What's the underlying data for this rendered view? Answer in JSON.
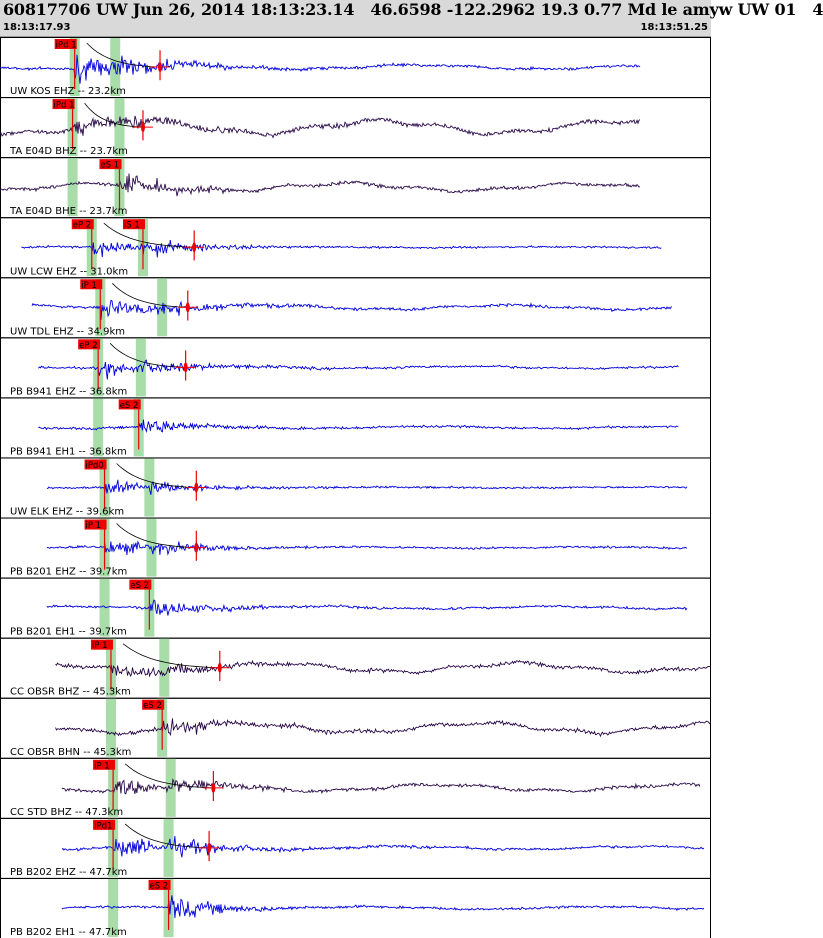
{
  "header": {
    "title": "60817706 UW Jun 26, 2014 18:13:23.14   46.6598 -122.2962 19.3 0.77 Md le amyw UW 01   4",
    "start_time": "18:13:17.93",
    "end_time": "18:13:51.25"
  },
  "colors": {
    "vertical_trace": "#0000dd",
    "horizontal_trace": "#2a0a4a",
    "pick_box": "#ee0000",
    "theory_band": "#a8dca8",
    "coda_curve": "#000000"
  },
  "chart_data": {
    "type": "line",
    "title": "",
    "xlabel": "",
    "ylabel": "",
    "x_range_s": [
      0,
      33.32
    ],
    "grid": false,
    "legend": "none",
    "channels": [
      {
        "label": "UW KOS EHZ -- 23.2km",
        "dist_km": 23.2,
        "component": "Z",
        "p_pick": "iPd 1",
        "p_time_s": 3.5,
        "s_pick": "",
        "s_time_s": 5.4,
        "coda": true,
        "coda_end_s": 6.0,
        "trace_start_s": 0.0,
        "trace_end_s": 30.0,
        "noise": 0.2,
        "amp": 1.0
      },
      {
        "label": "TA E04D BHZ -- 23.7km",
        "dist_km": 23.7,
        "component": "Z",
        "p_pick": "iPd 1",
        "p_time_s": 3.4,
        "s_pick": "",
        "s_time_s": 5.6,
        "coda": true,
        "coda_end_s": 5.2,
        "trace_start_s": 0.0,
        "trace_end_s": 30.0,
        "noise": 0.6,
        "amp": 0.5
      },
      {
        "label": "TA E04D BHE -- 23.7km",
        "dist_km": 23.7,
        "component": "H",
        "p_pick": "",
        "p_time_s": 3.4,
        "s_pick": "eS 1",
        "s_time_s": 5.6,
        "coda": false,
        "coda_end_s": 0,
        "trace_start_s": 0.0,
        "trace_end_s": 30.0,
        "noise": 0.35,
        "amp": 0.8
      },
      {
        "label": "UW LCW EHZ -- 31.0km",
        "dist_km": 31.0,
        "component": "Z",
        "p_pick": "eP 2",
        "p_time_s": 4.3,
        "s_pick": "iS 1",
        "s_time_s": 6.7,
        "coda": true,
        "coda_end_s": 7.6,
        "trace_start_s": 1.0,
        "trace_end_s": 31.0,
        "noise": 0.04,
        "amp": 0.8
      },
      {
        "label": "UW TDL EHZ -- 34.9km",
        "dist_km": 34.9,
        "component": "Z",
        "p_pick": "iP 1",
        "p_time_s": 4.7,
        "s_pick": "",
        "s_time_s": 7.6,
        "coda": true,
        "coda_end_s": 7.3,
        "trace_start_s": 1.5,
        "trace_end_s": 31.5,
        "noise": 0.2,
        "amp": 0.8
      },
      {
        "label": "PB B941 EHZ -- 36.8km",
        "dist_km": 36.8,
        "component": "Z",
        "p_pick": "eP 2",
        "p_time_s": 4.6,
        "s_pick": "",
        "s_time_s": 6.6,
        "coda": true,
        "coda_end_s": 7.2,
        "trace_start_s": 1.8,
        "trace_end_s": 31.8,
        "noise": 0.1,
        "amp": 0.6
      },
      {
        "label": "PB B941 EH1 -- 36.8km",
        "dist_km": 36.8,
        "component": "H",
        "p_pick": "",
        "p_time_s": 4.6,
        "s_pick": "eS 2",
        "s_time_s": 6.5,
        "coda": false,
        "coda_end_s": 0,
        "trace_start_s": 1.8,
        "trace_end_s": 31.8,
        "noise": 0.1,
        "amp": 0.7
      },
      {
        "label": "UW ELK EHZ -- 39.6km",
        "dist_km": 39.6,
        "component": "Z",
        "p_pick": "iPd0",
        "p_time_s": 4.9,
        "s_pick": "",
        "s_time_s": 7.0,
        "coda": true,
        "coda_end_s": 7.7,
        "trace_start_s": 2.2,
        "trace_end_s": 32.2,
        "noise": 0.04,
        "amp": 0.5
      },
      {
        "label": "PB B201 EHZ -- 39.7km",
        "dist_km": 39.7,
        "component": "Z",
        "p_pick": "iP 1",
        "p_time_s": 4.9,
        "s_pick": "",
        "s_time_s": 7.1,
        "coda": true,
        "coda_end_s": 7.7,
        "trace_start_s": 2.2,
        "trace_end_s": 32.2,
        "noise": 0.06,
        "amp": 0.6
      },
      {
        "label": "PB B201 EH1 -- 39.7km",
        "dist_km": 39.7,
        "component": "H",
        "p_pick": "",
        "p_time_s": 4.9,
        "s_pick": "eS 2",
        "s_time_s": 7.0,
        "coda": false,
        "coda_end_s": 0,
        "trace_start_s": 2.2,
        "trace_end_s": 32.2,
        "noise": 0.12,
        "amp": 0.7
      },
      {
        "label": "CC OBSR BHZ -- 45.3km",
        "dist_km": 45.3,
        "component": "Z",
        "p_pick": "iP 1",
        "p_time_s": 5.2,
        "s_pick": "",
        "s_time_s": 7.7,
        "coda": true,
        "coda_end_s": 8.8,
        "trace_start_s": 2.6,
        "trace_end_s": 33.3,
        "noise": 0.4,
        "amp": 0.5
      },
      {
        "label": "CC OBSR BHN -- 45.3km",
        "dist_km": 45.3,
        "component": "H",
        "p_pick": "",
        "p_time_s": 5.2,
        "s_pick": "eS 2",
        "s_time_s": 7.6,
        "coda": false,
        "coda_end_s": 0,
        "trace_start_s": 2.6,
        "trace_end_s": 33.3,
        "noise": 0.45,
        "amp": 0.6
      },
      {
        "label": "CC STD BHZ -- 47.3km",
        "dist_km": 47.3,
        "component": "Z",
        "p_pick": "iP 1",
        "p_time_s": 5.3,
        "s_pick": "",
        "s_time_s": 8.0,
        "coda": true,
        "coda_end_s": 8.5,
        "trace_start_s": 2.9,
        "trace_end_s": 32.8,
        "noise": 0.3,
        "amp": 0.7
      },
      {
        "label": "PB B202 EHZ -- 47.7km",
        "dist_km": 47.7,
        "component": "Z",
        "p_pick": "iPd1",
        "p_time_s": 5.3,
        "s_pick": "",
        "s_time_s": 7.9,
        "coda": true,
        "coda_end_s": 8.3,
        "trace_start_s": 2.9,
        "trace_end_s": 33.0,
        "noise": 0.15,
        "amp": 0.9
      },
      {
        "label": "PB B202 EH1 -- 47.7km",
        "dist_km": 47.7,
        "component": "H",
        "p_pick": "",
        "p_time_s": 5.3,
        "s_pick": "eS 2",
        "s_time_s": 7.9,
        "coda": false,
        "coda_end_s": 0,
        "trace_start_s": 2.9,
        "trace_end_s": 33.0,
        "noise": 0.12,
        "amp": 0.9
      }
    ]
  }
}
